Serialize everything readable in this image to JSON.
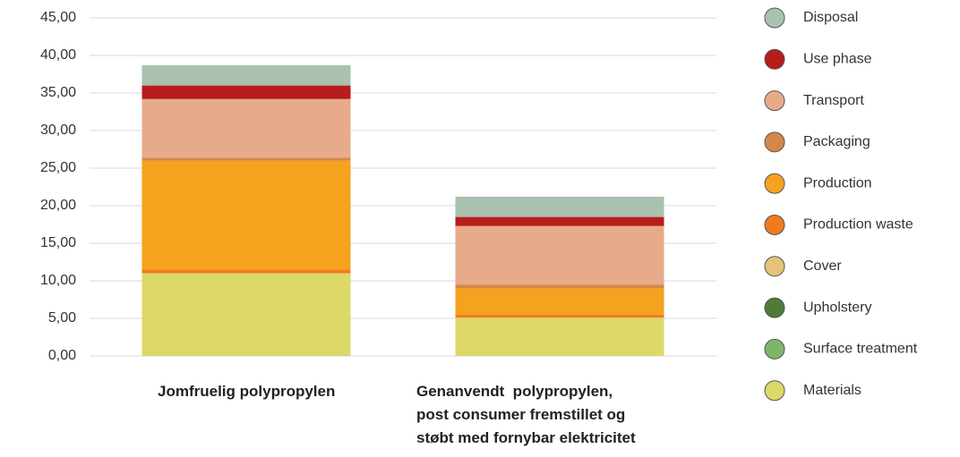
{
  "chart_data": {
    "type": "stacked_bar",
    "categories": [
      "Jomfruelig polypropylen",
      "Genanvendt  polypropylen,\npost consumer fremstillet og\nstøbt med fornybar elektricitet"
    ],
    "series": [
      {
        "name": "Materials",
        "color": "#dcd86a",
        "values": [
          11.0,
          5.1
        ]
      },
      {
        "name": "Surface treatment",
        "color": "#7fb56a",
        "values": [
          0,
          0
        ]
      },
      {
        "name": "Upholstery",
        "color": "#4f7a3a",
        "values": [
          0,
          0
        ]
      },
      {
        "name": "Cover",
        "color": "#e6c27a",
        "values": [
          0,
          0
        ]
      },
      {
        "name": "Production waste",
        "color": "#f07a1f",
        "values": [
          0.5,
          0.4
        ]
      },
      {
        "name": "Production",
        "color": "#f5a21f",
        "values": [
          14.5,
          3.5
        ]
      },
      {
        "name": "Packaging",
        "color": "#d4874a",
        "values": [
          0.4,
          0.5
        ]
      },
      {
        "name": "Transport",
        "color": "#e8ab8a",
        "values": [
          7.8,
          7.8
        ]
      },
      {
        "name": "Use phase",
        "color": "#b71c1c",
        "values": [
          1.8,
          1.2
        ]
      },
      {
        "name": "Disposal",
        "color": "#a9c2b0",
        "values": [
          2.7,
          2.7
        ]
      }
    ],
    "ylim": [
      0,
      45
    ],
    "yticks": [
      {
        "value": 0,
        "label": "0,00"
      },
      {
        "value": 5,
        "label": "5,00"
      },
      {
        "value": 10,
        "label": "10,00"
      },
      {
        "value": 15,
        "label": "15,00"
      },
      {
        "value": 20,
        "label": "20,00"
      },
      {
        "value": 25,
        "label": "25,00"
      },
      {
        "value": 30,
        "label": "30,00"
      },
      {
        "value": 35,
        "label": "35,00"
      },
      {
        "value": 40,
        "label": "40,00"
      },
      {
        "value": 45,
        "label": "45,00"
      }
    ],
    "grid": true
  }
}
